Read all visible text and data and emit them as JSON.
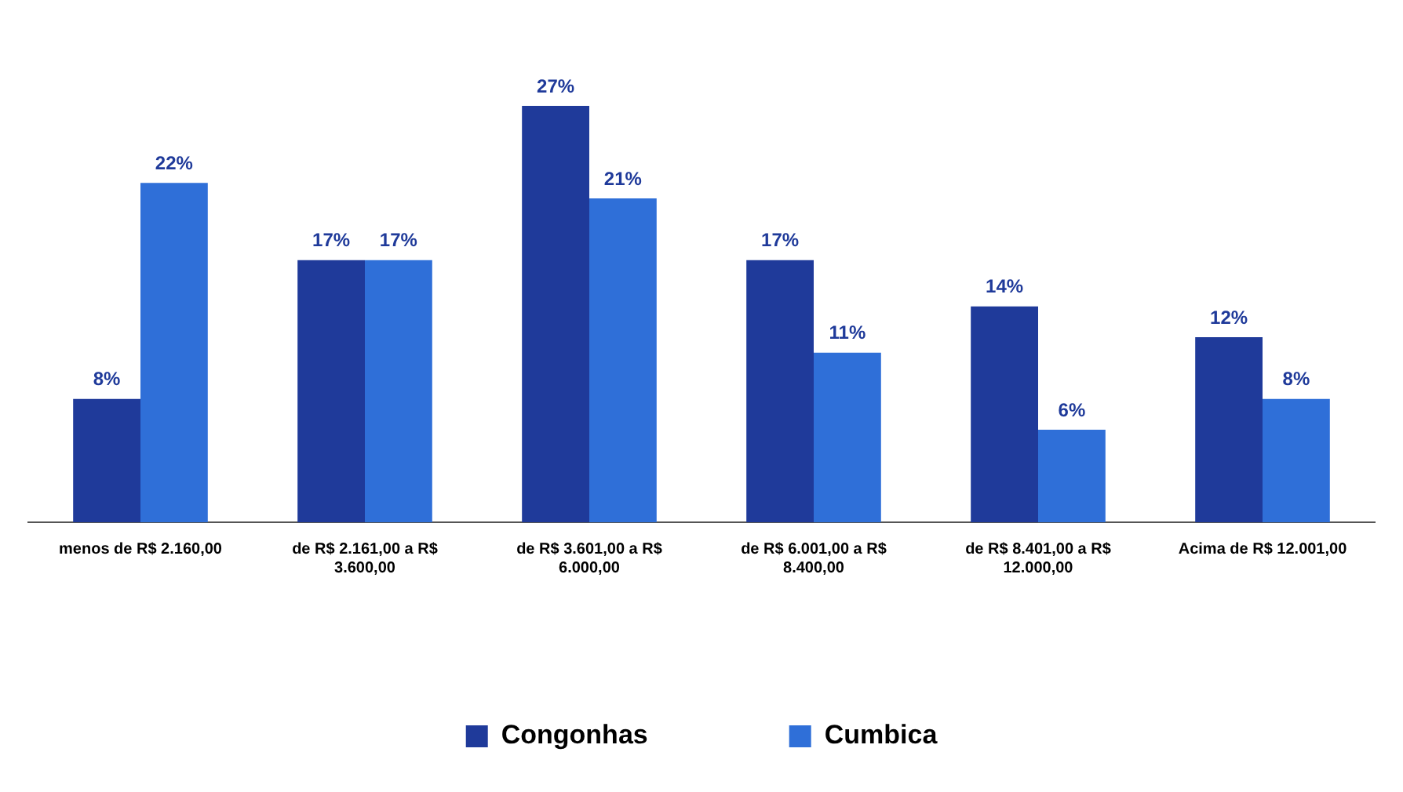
{
  "chart_data": {
    "type": "bar",
    "categories": [
      "menos de R$ 2.160,00",
      "de R$ 2.161,00 a R$ 3.600,00",
      "de R$ 3.601,00 a R$ 6.000,00",
      "de R$ 6.001,00 a R$ 8.400,00",
      "de R$ 8.401,00 a R$ 12.000,00",
      "Acima de R$ 12.001,00"
    ],
    "series": [
      {
        "name": "Congonhas",
        "color": "#1f3a9a",
        "values": [
          8,
          17,
          27,
          17,
          14,
          12
        ],
        "value_labels": [
          "8%",
          "17%",
          "27%",
          "17%",
          "14%",
          "12%"
        ]
      },
      {
        "name": "Cumbica",
        "color": "#2f6fd8",
        "values": [
          22,
          17,
          21,
          11,
          6,
          8
        ],
        "value_labels": [
          "22%",
          "17%",
          "21%",
          "11%",
          "6%",
          "8%"
        ]
      }
    ],
    "legend": "bottom",
    "grid": false
  }
}
